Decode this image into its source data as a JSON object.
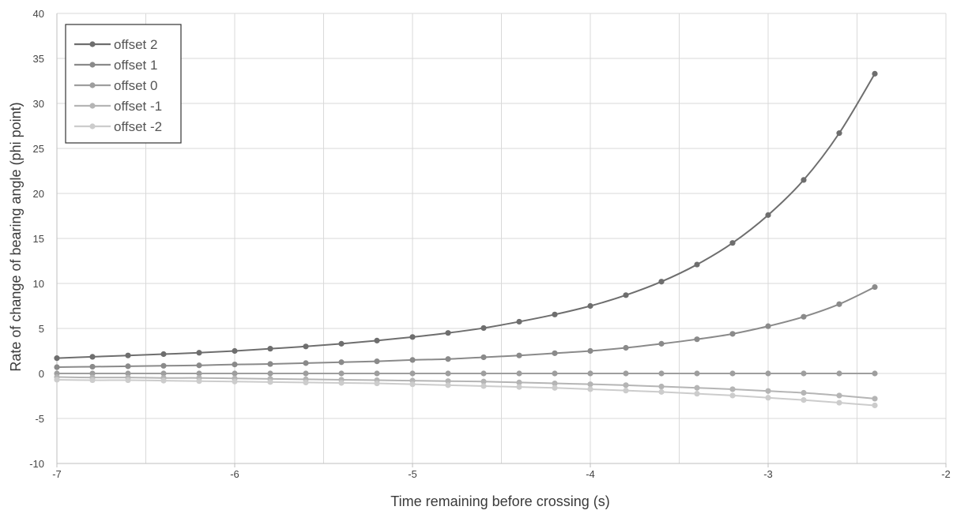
{
  "chart_data": {
    "type": "line",
    "title": "",
    "xlabel": "Time remaining before crossing  (s)",
    "ylabel": "Rate of change of bearing angle (phi point)",
    "xlim": [
      -7,
      -2
    ],
    "ylim": [
      -10,
      40
    ],
    "x_ticks": [
      -7,
      -6,
      -5,
      -4,
      -3,
      -2
    ],
    "y_ticks": [
      -10,
      -5,
      0,
      5,
      10,
      15,
      20,
      25,
      30,
      35,
      40
    ],
    "x_minor_step": 0.5,
    "grid": true,
    "legend_position": "top-left",
    "x": [
      -7.0,
      -6.8,
      -6.6,
      -6.4,
      -6.2,
      -6.0,
      -5.8,
      -5.6,
      -5.4,
      -5.2,
      -5.0,
      -4.8,
      -4.6,
      -4.4,
      -4.2,
      -4.0,
      -3.8,
      -3.6,
      -3.4,
      -3.2,
      -3.0,
      -2.8,
      -2.6,
      -2.4
    ],
    "series": [
      {
        "name": "offset 2",
        "color": "#6e6e6e",
        "values": [
          1.7,
          1.85,
          2.0,
          2.15,
          2.3,
          2.5,
          2.75,
          3.0,
          3.3,
          3.65,
          4.05,
          4.5,
          5.05,
          5.75,
          6.55,
          7.5,
          8.7,
          10.2,
          12.1,
          14.5,
          17.6,
          21.5,
          26.7,
          33.3
        ]
      },
      {
        "name": "offset 1",
        "color": "#8a8a8a",
        "values": [
          0.7,
          0.75,
          0.8,
          0.85,
          0.9,
          1.0,
          1.05,
          1.15,
          1.25,
          1.35,
          1.5,
          1.6,
          1.8,
          2.0,
          2.25,
          2.5,
          2.85,
          3.3,
          3.8,
          4.4,
          5.25,
          6.3,
          7.7,
          9.6
        ]
      },
      {
        "name": "offset 0",
        "color": "#9e9e9e",
        "values": [
          0,
          0,
          0,
          0,
          0,
          0,
          0,
          0,
          0,
          0,
          0,
          0,
          0,
          0,
          0,
          0,
          0,
          0,
          0,
          0,
          0,
          0,
          0,
          0
        ]
      },
      {
        "name": "offset -1",
        "color": "#b5b5b5",
        "values": [
          -0.4,
          -0.45,
          -0.45,
          -0.5,
          -0.5,
          -0.55,
          -0.6,
          -0.65,
          -0.7,
          -0.75,
          -0.8,
          -0.85,
          -0.9,
          -1.0,
          -1.1,
          -1.2,
          -1.3,
          -1.45,
          -1.6,
          -1.75,
          -1.95,
          -2.15,
          -2.45,
          -2.8
        ]
      },
      {
        "name": "offset -2",
        "color": "#cccccc",
        "values": [
          -0.7,
          -0.75,
          -0.75,
          -0.8,
          -0.85,
          -0.9,
          -0.95,
          -1.0,
          -1.05,
          -1.1,
          -1.2,
          -1.3,
          -1.4,
          -1.5,
          -1.6,
          -1.75,
          -1.9,
          -2.05,
          -2.25,
          -2.45,
          -2.7,
          -2.95,
          -3.25,
          -3.55
        ]
      }
    ]
  }
}
